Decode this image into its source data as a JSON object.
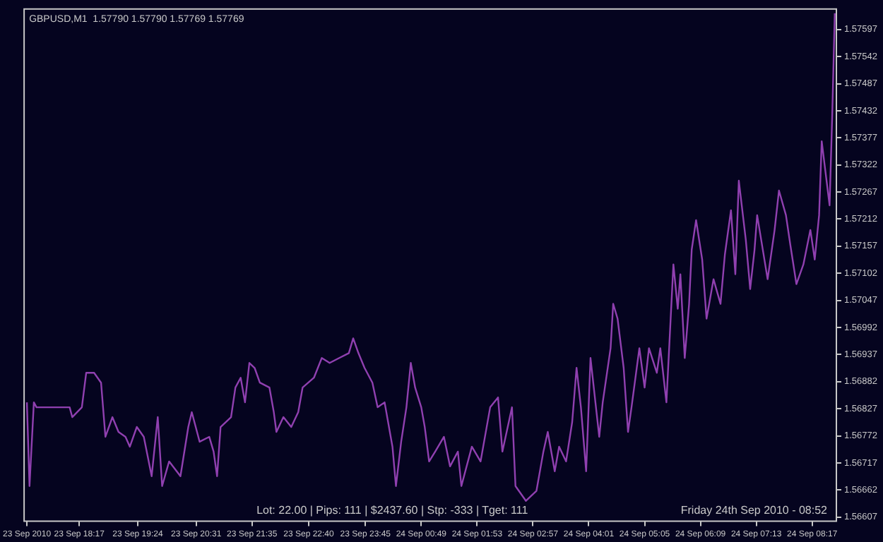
{
  "chart_data": {
    "type": "line",
    "title": "GBPUSD,M1  1.57790 1.57790 1.57769 1.57769",
    "annotations": [
      "Lot: 22.00 | Pips: 111 | $2437.60 | Stp: -333 | Tget: 111",
      "Friday 24th Sep 2010 - 08:52"
    ],
    "x": [
      "2010-09-23T17:17",
      "2010-09-23T17:20",
      "2010-09-23T17:25",
      "2010-09-23T17:28",
      "2010-09-23T18:06",
      "2010-09-23T18:09",
      "2010-09-23T18:20",
      "2010-09-23T18:25",
      "2010-09-23T18:34",
      "2010-09-23T18:42",
      "2010-09-23T18:47",
      "2010-09-23T18:55",
      "2010-09-23T19:02",
      "2010-09-23T19:10",
      "2010-09-23T19:15",
      "2010-09-23T19:23",
      "2010-09-23T19:31",
      "2010-09-23T19:40",
      "2010-09-23T19:47",
      "2010-09-23T19:52",
      "2010-09-23T20:00",
      "2010-09-23T20:13",
      "2010-09-23T20:22",
      "2010-09-23T20:26",
      "2010-09-23T20:35",
      "2010-09-23T20:46",
      "2010-09-23T20:51",
      "2010-09-23T20:55",
      "2010-09-23T20:59",
      "2010-09-23T21:11",
      "2010-09-23T21:16",
      "2010-09-23T21:22",
      "2010-09-23T21:27",
      "2010-09-23T21:32",
      "2010-09-23T21:38",
      "2010-09-23T21:44",
      "2010-09-23T21:55",
      "2010-09-23T22:00",
      "2010-09-23T22:03",
      "2010-09-23T22:11",
      "2010-09-23T22:20",
      "2010-09-23T22:28",
      "2010-09-23T22:33",
      "2010-09-23T22:46",
      "2010-09-23T22:55",
      "2010-09-23T23:04",
      "2010-09-23T23:15",
      "2010-09-23T23:26",
      "2010-09-23T23:31",
      "2010-09-23T23:37",
      "2010-09-23T23:44",
      "2010-09-23T23:53",
      "2010-09-23T23:59",
      "2010-09-24T00:07",
      "2010-09-24T00:16",
      "2010-09-24T00:20",
      "2010-09-24T00:26",
      "2010-09-24T00:32",
      "2010-09-24T00:37",
      "2010-09-24T00:42",
      "2010-09-24T00:49",
      "2010-09-24T00:53",
      "2010-09-24T00:58",
      "2010-09-24T01:05",
      "2010-09-24T01:15",
      "2010-09-24T01:22",
      "2010-09-24T01:31",
      "2010-09-24T01:35",
      "2010-09-24T01:47",
      "2010-09-24T01:57",
      "2010-09-24T02:08",
      "2010-09-24T02:17",
      "2010-09-24T02:22",
      "2010-09-24T02:33",
      "2010-09-24T02:37",
      "2010-09-24T02:49",
      "2010-09-24T03:01",
      "2010-09-24T03:09",
      "2010-09-24T03:14",
      "2010-09-24T03:22",
      "2010-09-24T03:27",
      "2010-09-24T03:35",
      "2010-09-24T03:42",
      "2010-09-24T03:47",
      "2010-09-24T03:52",
      "2010-09-24T03:58",
      "2010-09-24T04:03",
      "2010-09-24T04:13",
      "2010-09-24T04:17",
      "2010-09-24T04:26",
      "2010-09-24T04:29",
      "2010-09-24T04:34",
      "2010-09-24T04:41",
      "2010-09-24T04:46",
      "2010-09-24T04:50",
      "2010-09-24T04:59",
      "2010-09-24T05:05",
      "2010-09-24T05:10",
      "2010-09-24T05:19",
      "2010-09-24T05:23",
      "2010-09-24T05:30",
      "2010-09-24T05:38",
      "2010-09-24T05:43",
      "2010-09-24T05:46",
      "2010-09-24T05:51",
      "2010-09-24T05:56",
      "2010-09-24T05:59",
      "2010-09-24T06:04",
      "2010-09-24T06:11",
      "2010-09-24T06:16",
      "2010-09-24T06:24",
      "2010-09-24T06:32",
      "2010-09-24T06:37",
      "2010-09-24T06:44",
      "2010-09-24T06:49",
      "2010-09-24T06:53",
      "2010-09-24T07:01",
      "2010-09-24T07:06",
      "2010-09-24T07:11",
      "2010-09-24T07:14",
      "2010-09-24T07:26",
      "2010-09-24T07:34",
      "2010-09-24T07:39",
      "2010-09-24T07:47",
      "2010-09-24T07:52",
      "2010-09-24T07:59",
      "2010-09-24T08:07",
      "2010-09-24T08:15",
      "2010-09-24T08:20",
      "2010-09-24T08:25",
      "2010-09-24T08:28",
      "2010-09-24T08:37",
      "2010-09-24T08:40",
      "2010-09-24T08:43"
    ],
    "series": [
      {
        "color": "#9040b0",
        "values": [
          1.5684,
          1.5667,
          1.5684,
          1.5683,
          1.5683,
          1.5681,
          1.5683,
          1.569,
          1.569,
          1.5688,
          1.5677,
          1.5681,
          1.5678,
          1.5677,
          1.5675,
          1.5679,
          1.5677,
          1.5669,
          1.5681,
          1.5667,
          1.5672,
          1.5669,
          1.5679,
          1.5682,
          1.5676,
          1.5677,
          1.5674,
          1.5669,
          1.5679,
          1.5681,
          1.5687,
          1.5689,
          1.5684,
          1.5692,
          1.5691,
          1.5688,
          1.5687,
          1.5682,
          1.5678,
          1.5681,
          1.5679,
          1.5682,
          1.5687,
          1.5689,
          1.5693,
          1.5692,
          1.5693,
          1.5694,
          1.5697,
          1.5694,
          1.5691,
          1.5688,
          1.5683,
          1.5684,
          1.5675,
          1.5667,
          1.5676,
          1.5683,
          1.5692,
          1.5687,
          1.5683,
          1.5679,
          1.5672,
          1.5674,
          1.5677,
          1.5671,
          1.5674,
          1.5667,
          1.5675,
          1.5672,
          1.5683,
          1.5685,
          1.5674,
          1.5683,
          1.5667,
          1.5664,
          1.5666,
          1.5674,
          1.5678,
          1.567,
          1.5675,
          1.5672,
          1.568,
          1.5691,
          1.5683,
          1.567,
          1.5693,
          1.5677,
          1.5684,
          1.5695,
          1.5704,
          1.5701,
          1.5691,
          1.5678,
          1.5683,
          1.5695,
          1.5687,
          1.5695,
          1.569,
          1.5695,
          1.5684,
          1.5712,
          1.5703,
          1.571,
          1.5693,
          1.5704,
          1.5715,
          1.5721,
          1.5713,
          1.5701,
          1.5709,
          1.5704,
          1.5714,
          1.5723,
          1.571,
          1.5729,
          1.5717,
          1.5707,
          1.5715,
          1.5722,
          1.5709,
          1.5719,
          1.5727,
          1.5722,
          1.5716,
          1.5708,
          1.5712,
          1.5719,
          1.5713,
          1.5722,
          1.5737,
          1.5724,
          1.5742,
          1.5763
        ]
      }
    ],
    "xlim": [
      "2010-09-23T17:13",
      "2010-09-24T08:44"
    ],
    "xticks": [
      {
        "value": "2010-09-23T17:17",
        "label": "23 Sep 2010"
      },
      {
        "value": "2010-09-23T18:17",
        "label": "23 Sep 18:17"
      },
      {
        "value": "2010-09-23T19:24",
        "label": "23 Sep 19:24"
      },
      {
        "value": "2010-09-23T20:31",
        "label": "23 Sep 20:31"
      },
      {
        "value": "2010-09-23T21:35",
        "label": "23 Sep 21:35"
      },
      {
        "value": "2010-09-23T22:40",
        "label": "23 Sep 22:40"
      },
      {
        "value": "2010-09-23T23:45",
        "label": "23 Sep 23:45"
      },
      {
        "value": "2010-09-24T00:49",
        "label": "24 Sep 00:49"
      },
      {
        "value": "2010-09-24T01:53",
        "label": "24 Sep 01:53"
      },
      {
        "value": "2010-09-24T02:57",
        "label": "24 Sep 02:57"
      },
      {
        "value": "2010-09-24T04:01",
        "label": "24 Sep 04:01"
      },
      {
        "value": "2010-09-24T05:05",
        "label": "24 Sep 05:05"
      },
      {
        "value": "2010-09-24T06:09",
        "label": "24 Sep 06:09"
      },
      {
        "value": "2010-09-24T07:13",
        "label": "24 Sep 07:13"
      },
      {
        "value": "2010-09-24T08:17",
        "label": "24 Sep 08:17"
      }
    ],
    "ylim": [
      1.566,
      1.5764
    ],
    "yticks": [
      1.56607,
      1.56662,
      1.56717,
      1.56772,
      1.56827,
      1.56882,
      1.56937,
      1.56992,
      1.57047,
      1.57102,
      1.57157,
      1.57212,
      1.57267,
      1.57322,
      1.57377,
      1.57432,
      1.57487,
      1.57542,
      1.57597
    ],
    "grid": false,
    "legend": false,
    "marker": "none",
    "line_style": "solid"
  }
}
